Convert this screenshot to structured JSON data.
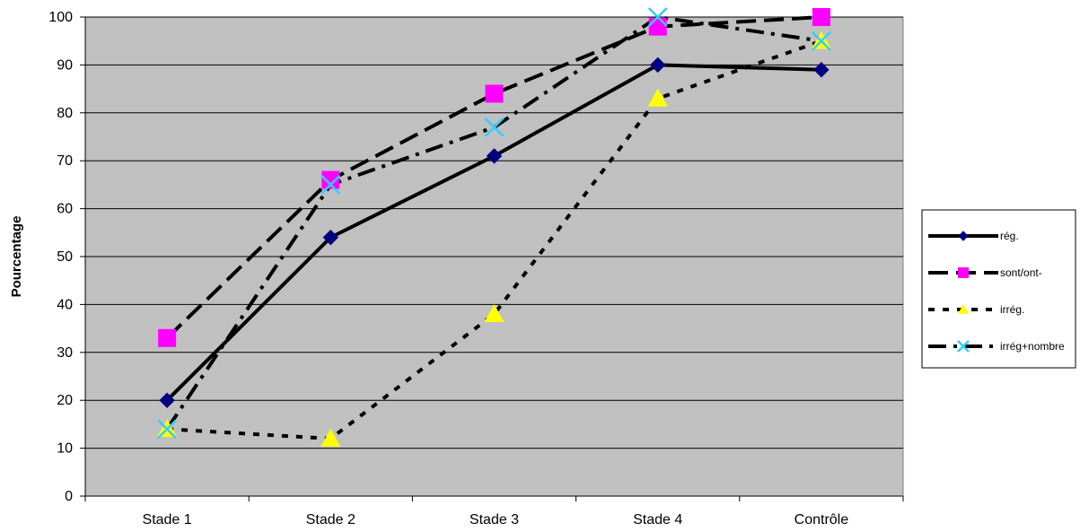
{
  "chart_data": {
    "type": "line",
    "title": "",
    "xlabel": "",
    "ylabel": "Pourcentage",
    "categories": [
      "Stade 1",
      "Stade 2",
      "Stade 3",
      "Stade 4",
      "Contrôle"
    ],
    "ylim": [
      0,
      100
    ],
    "yticks": [
      0,
      10,
      20,
      30,
      40,
      50,
      60,
      70,
      80,
      90,
      100
    ],
    "grid": true,
    "plot_background": "#c0c0c0",
    "legend_position": "right",
    "series": [
      {
        "name": "rég.",
        "values": [
          20,
          54,
          71,
          90,
          89
        ],
        "line_color": "#000000",
        "line_style": "solid",
        "marker": "diamond",
        "marker_color": "#000080"
      },
      {
        "name": "sont/ont-",
        "values": [
          33,
          66,
          84,
          98,
          100
        ],
        "line_color": "#000000",
        "line_style": "long-dash",
        "marker": "square",
        "marker_color": "#ff00ff"
      },
      {
        "name": "irrég.",
        "values": [
          14,
          12,
          38,
          83,
          95
        ],
        "line_color": "#000000",
        "line_style": "dotted",
        "marker": "triangle",
        "marker_color": "#ffff00"
      },
      {
        "name": "irrég+nombre",
        "values": [
          14,
          65,
          77,
          100,
          95
        ],
        "line_color": "#000000",
        "line_style": "dash-dot",
        "marker": "x",
        "marker_color": "#33ccff"
      }
    ]
  }
}
